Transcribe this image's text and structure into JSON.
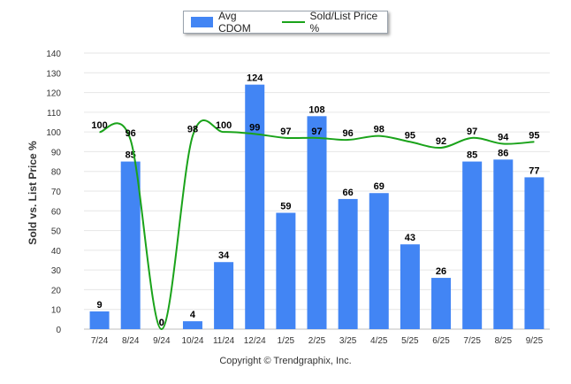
{
  "legend": {
    "bar_label": "Avg CDOM",
    "line_label": "Sold/List Price %"
  },
  "copyright": "Copyright © Trendgraphix, Inc.",
  "chart_data": {
    "type": "bar+line",
    "categories": [
      "7/24",
      "8/24",
      "9/24",
      "10/24",
      "11/24",
      "12/24",
      "1/25",
      "2/25",
      "3/25",
      "4/25",
      "5/25",
      "6/25",
      "7/25",
      "8/25",
      "9/25"
    ],
    "series": [
      {
        "name": "Avg CDOM",
        "type": "bar",
        "color": "#4285f4",
        "values": [
          9,
          85,
          0,
          4,
          34,
          124,
          59,
          108,
          66,
          69,
          43,
          26,
          85,
          86,
          77
        ]
      },
      {
        "name": "Sold/List Price %",
        "type": "line",
        "color": "#1aa31a",
        "values": [
          100,
          96,
          0,
          98,
          100,
          99,
          97,
          97,
          96,
          98,
          95,
          92,
          97,
          94,
          95
        ]
      }
    ],
    "ylabel": "Sold vs. List Price %",
    "ylim": [
      0,
      140
    ],
    "yticks": [
      0,
      10,
      20,
      30,
      40,
      50,
      60,
      70,
      80,
      90,
      100,
      110,
      120,
      130,
      140
    ],
    "grid": true
  }
}
